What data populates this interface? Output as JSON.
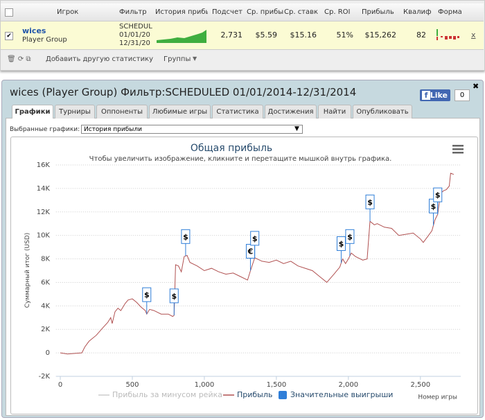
{
  "table": {
    "headers": [
      "Игрок",
      "Фильтр",
      "История прибы",
      "Подсчет",
      "Ср. прибы",
      "Ср. ставк",
      "Ср. ROI",
      "Прибыль",
      "Квалиф",
      "Форма"
    ],
    "row": {
      "player": "wices",
      "group": "Player Group",
      "filter": [
        "SCHEDUL",
        "01/01/20",
        "12/31/20"
      ],
      "cells": [
        "2,731",
        "$5.59",
        "$15.16",
        "51%",
        "$15,262",
        "82"
      ],
      "close": "x"
    }
  },
  "toolbar": {
    "add": "Добавить другую статистику",
    "groups": "Группы"
  },
  "panel": {
    "title": "wices (Player Group) Фильтр:SCHEDULED 01/01/2014-12/31/2014",
    "like": "Like",
    "like_count": "0",
    "tabs": [
      "Графики",
      "Турниры",
      "Оппоненты",
      "Любимые игры",
      "Статистика",
      "Достижения",
      "Найти",
      "Опубликовать"
    ],
    "selector_label": "Выбранные графики:",
    "selector_value": "История прибыли"
  },
  "chart_data": {
    "type": "line",
    "title": "Общая прибыль",
    "subtitle": "Чтобы увеличить изображение, кликните и перетащите мышкой внутрь графика.",
    "y_label": "Суммарный итог (USD)",
    "x_label": "Номер игры",
    "xlim": [
      -30,
      2780
    ],
    "ylim": [
      -2000,
      16000
    ],
    "xticks": [
      0,
      500,
      {
        "value": 1000,
        "label": "1,000"
      },
      {
        "value": 1500,
        "label": "1,500"
      },
      {
        "value": 2000,
        "label": "2,000"
      },
      {
        "value": 2500,
        "label": "2,500"
      }
    ],
    "yticks": [
      {
        "value": -2000,
        "label": "-2K"
      },
      0,
      {
        "value": 2000,
        "label": "2K"
      },
      {
        "value": 4000,
        "label": "4K"
      },
      {
        "value": 6000,
        "label": "6K"
      },
      {
        "value": 8000,
        "label": "8K"
      },
      {
        "value": 10000,
        "label": "10K"
      },
      {
        "value": 12000,
        "label": "12K"
      },
      {
        "value": 14000,
        "label": "14K"
      },
      {
        "value": 16000,
        "label": "16K"
      }
    ],
    "grid": true,
    "legend": [
      "Прибыль за минусом рейка",
      "Прибыль",
      "Значительные выигрыши"
    ],
    "legend_colors": [
      "#cccccc",
      "#b05050",
      "#2f7ed8"
    ],
    "series": [
      {
        "name": "Прибыль",
        "color": "#b05050",
        "x": [
          0,
          50,
          150,
          170,
          200,
          250,
          300,
          330,
          350,
          360,
          380,
          400,
          420,
          450,
          470,
          500,
          530,
          560,
          590,
          600,
          620,
          650,
          700,
          750,
          780,
          790,
          800,
          820,
          840,
          860,
          880,
          900,
          950,
          1000,
          1050,
          1100,
          1150,
          1200,
          1250,
          1300,
          1320,
          1350,
          1400,
          1450,
          1500,
          1550,
          1600,
          1650,
          1700,
          1750,
          1800,
          1850,
          1900,
          1940,
          1960,
          1980,
          2000,
          2020,
          2050,
          2100,
          2130,
          2150,
          2180,
          2200,
          2250,
          2300,
          2350,
          2400,
          2450,
          2500,
          2520,
          2550,
          2580,
          2600,
          2620,
          2640,
          2660,
          2680,
          2700,
          2710,
          2731
        ],
        "values": [
          0,
          -100,
          0,
          500,
          1000,
          1500,
          2200,
          2600,
          3000,
          2500,
          3500,
          3800,
          3600,
          4200,
          4500,
          4600,
          4300,
          3900,
          3600,
          3300,
          3700,
          3600,
          3300,
          3300,
          3100,
          3200,
          7500,
          7400,
          6900,
          8200,
          8300,
          7700,
          7400,
          7000,
          7200,
          6900,
          6700,
          6800,
          6500,
          6200,
          7000,
          8100,
          7800,
          7700,
          7900,
          7600,
          7800,
          7400,
          7200,
          7000,
          6500,
          6000,
          6700,
          7300,
          8000,
          7600,
          8000,
          8500,
          8200,
          7900,
          8000,
          11200,
          10900,
          11000,
          10700,
          10600,
          10000,
          10100,
          10200,
          9700,
          9400,
          9900,
          10400,
          11300,
          11800,
          13600,
          13800,
          13900,
          14200,
          15300,
          15200
        ]
      }
    ],
    "flags": [
      {
        "x": 600,
        "title": "$"
      },
      {
        "x": 790,
        "title": "$"
      },
      {
        "x": 870,
        "title": "$"
      },
      {
        "x": 1320,
        "title": "€"
      },
      {
        "x": 1350,
        "title": "$"
      },
      {
        "x": 1950,
        "title": "$"
      },
      {
        "x": 2010,
        "title": "$"
      },
      {
        "x": 2150,
        "title": "$"
      },
      {
        "x": 2590,
        "title": "$"
      },
      {
        "x": 2620,
        "title": "$"
      }
    ]
  }
}
